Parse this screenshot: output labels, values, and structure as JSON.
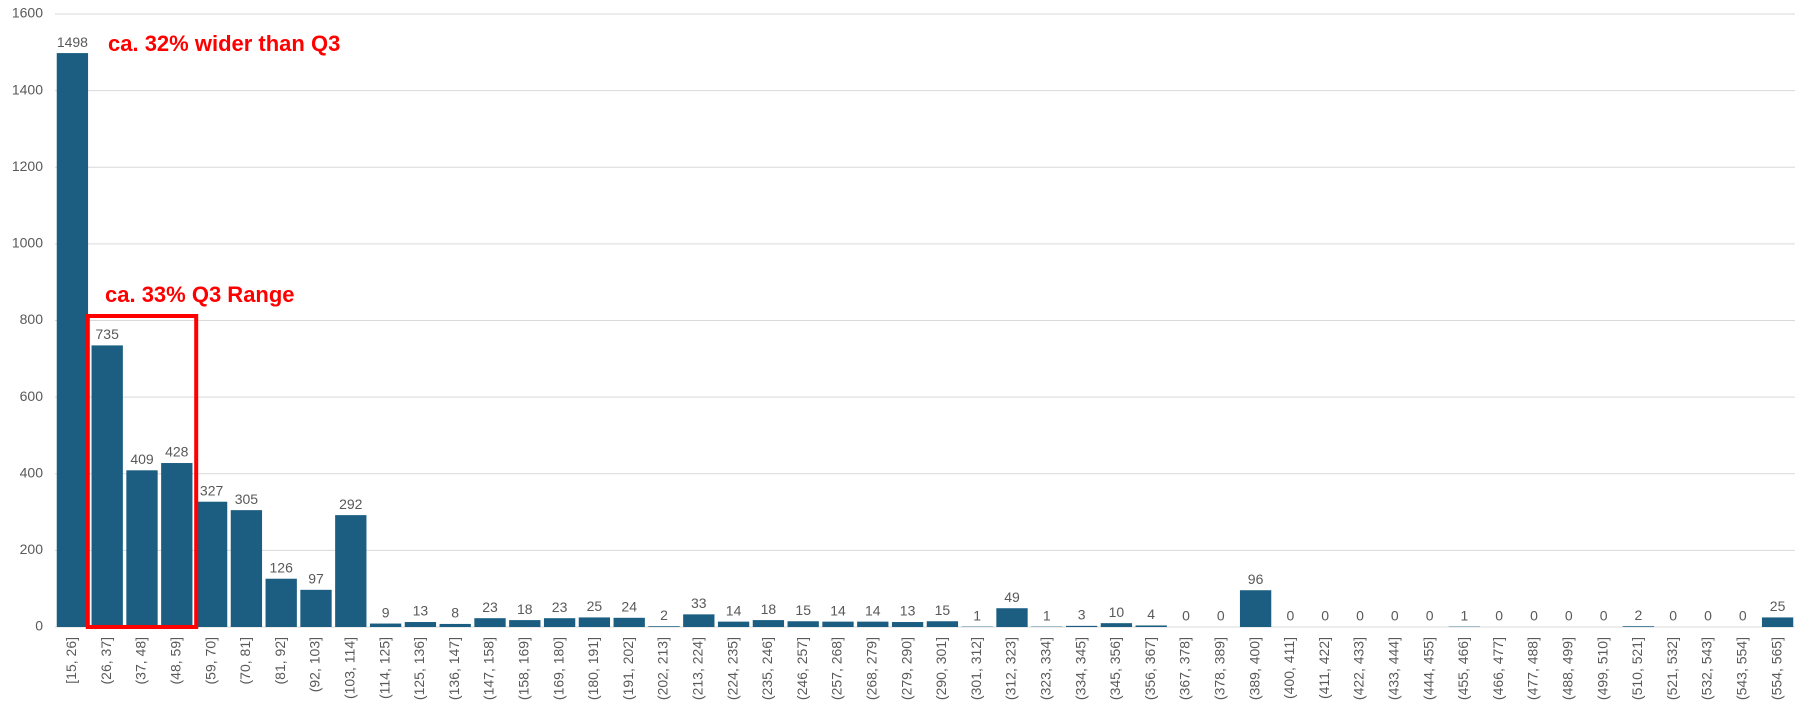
{
  "chart_data": {
    "type": "bar",
    "categories": [
      "[15, 26]",
      "(26, 37]",
      "(37, 48]",
      "(48, 59]",
      "(59, 70]",
      "(70, 81]",
      "(81, 92]",
      "(92, 103]",
      "(103, 114]",
      "(114, 125]",
      "(125, 136]",
      "(136, 147]",
      "(147, 158]",
      "(158, 169]",
      "(169, 180]",
      "(180, 191]",
      "(191, 202]",
      "(202, 213]",
      "(213, 224]",
      "(224, 235]",
      "(235, 246]",
      "(246, 257]",
      "(257, 268]",
      "(268, 279]",
      "(279, 290]",
      "(290, 301]",
      "(301, 312]",
      "(312, 323]",
      "(323, 334]",
      "(334, 345]",
      "(345, 356]",
      "(356, 367]",
      "(367, 378]",
      "(378, 389]",
      "(389, 400]",
      "(400, 411]",
      "(411, 422]",
      "(422, 433]",
      "(433, 444]",
      "(444, 455]",
      "(455, 466]",
      "(466, 477]",
      "(477, 488]",
      "(488, 499]",
      "(499, 510]",
      "(510, 521]",
      "(521, 532]",
      "(532, 543]",
      "(543, 554]",
      "(554, 565]"
    ],
    "values": [
      1498,
      735,
      409,
      428,
      327,
      305,
      126,
      97,
      292,
      9,
      13,
      8,
      23,
      18,
      23,
      25,
      24,
      2,
      33,
      14,
      18,
      15,
      14,
      14,
      13,
      15,
      1,
      49,
      1,
      3,
      10,
      4,
      0,
      0,
      96,
      0,
      0,
      0,
      0,
      0,
      1,
      0,
      0,
      0,
      0,
      2,
      0,
      0,
      0,
      25
    ],
    "color": "#1b5e82",
    "ylim": [
      0,
      1600
    ],
    "yticks": [
      0,
      200,
      400,
      600,
      800,
      1000,
      1200,
      1400,
      1600
    ],
    "grid": true,
    "annotations": [
      "ca. 32% wider than Q3",
      "ca. 33% Q3 Range"
    ]
  }
}
